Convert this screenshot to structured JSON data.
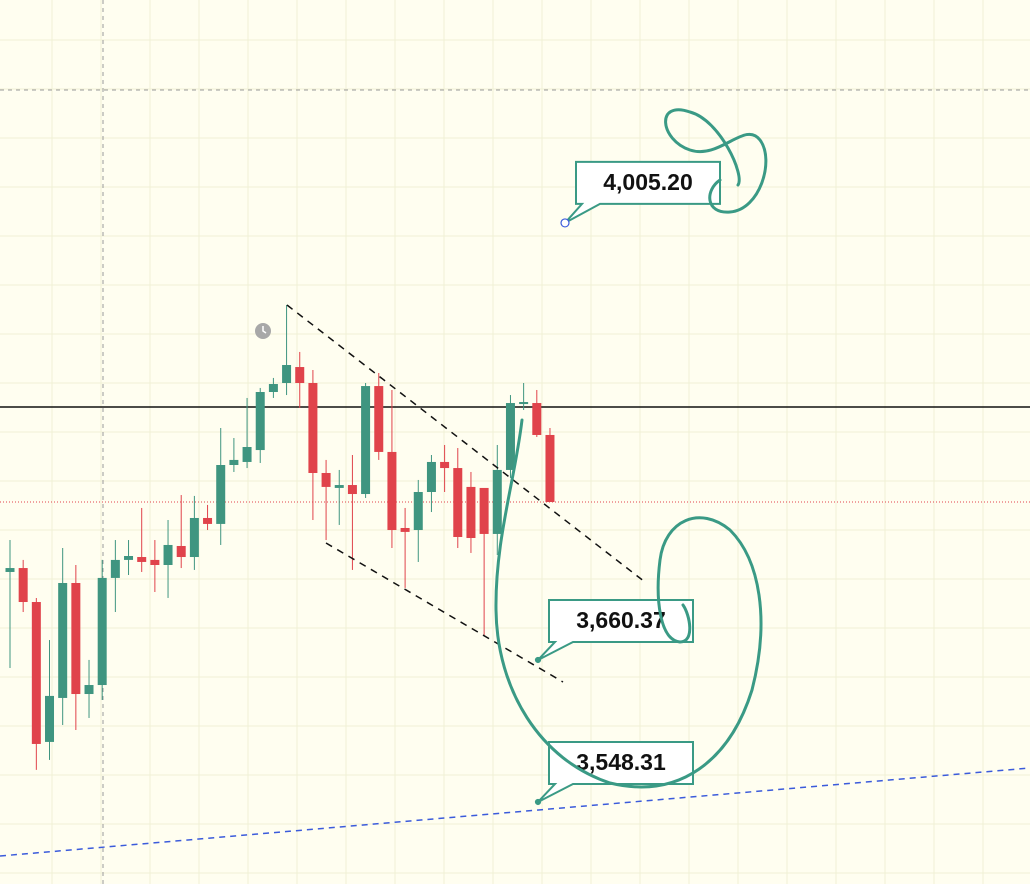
{
  "chart_data": {
    "type": "candlestick",
    "ylim": [
      3483.6,
      4181.1
    ],
    "up_color": "#3f9580",
    "down_color": "#e0434b",
    "open": [
      3729.8,
      3732.9,
      3706.1,
      3595.7,
      3630.4,
      3721.1,
      3633.5,
      3640.6,
      3725.1,
      3739.3,
      3741.6,
      3739.3,
      3735.3,
      3750.3,
      3741.6,
      3772.4,
      3767.7,
      3814.2,
      3816.6,
      3826.0,
      3871.8,
      3878.9,
      3891.5,
      3878.9,
      3807.9,
      3796.1,
      3798.4,
      3791.3,
      3876.5,
      3824.5,
      3764.5,
      3762.9,
      3792.9,
      3816.6,
      3811.8,
      3796.9,
      3796.1,
      3759.8,
      3810.3,
      3862.3,
      3863.1,
      3837.9
    ],
    "high": [
      3755.0,
      3739.3,
      3709.3,
      3676.1,
      3748.7,
      3735.3,
      3660.4,
      3739.3,
      3755.0,
      3755.0,
      3780.3,
      3755.0,
      3770.8,
      3790.5,
      3789.8,
      3782.7,
      3843.4,
      3835.5,
      3867.1,
      3875.0,
      3882.9,
      3940.5,
      3903.4,
      3889.2,
      3818.2,
      3810.3,
      3822.1,
      3878.9,
      3886.8,
      3873.4,
      3780.3,
      3802.4,
      3822.1,
      3830.0,
      3827.6,
      3808.7,
      3796.1,
      3830.0,
      3869.4,
      3878.9,
      3873.4,
      3843.4
    ],
    "low": [
      3654.0,
      3698.2,
      3573.6,
      3581.5,
      3609.1,
      3605.1,
      3614.6,
      3628.8,
      3698.2,
      3727.4,
      3729.8,
      3714.0,
      3709.3,
      3732.9,
      3731.4,
      3762.9,
      3751.1,
      3808.7,
      3811.8,
      3815.8,
      3867.1,
      3869.4,
      3859.2,
      3770.8,
      3755.0,
      3766.9,
      3731.4,
      3788.2,
      3818.2,
      3748.7,
      3717.2,
      3737.7,
      3777.1,
      3792.9,
      3748.7,
      3744.8,
      3680.1,
      3743.2,
      3804.0,
      3857.6,
      3836.3,
      3785.0
    ],
    "close": [
      3732.9,
      3706.1,
      3594.1,
      3632.0,
      3721.1,
      3633.5,
      3640.6,
      3725.1,
      3739.3,
      3742.4,
      3737.7,
      3735.3,
      3751.1,
      3741.6,
      3772.4,
      3767.7,
      3814.2,
      3818.2,
      3828.4,
      3871.8,
      3878.1,
      3893.1,
      3878.9,
      3807.9,
      3796.9,
      3798.4,
      3791.3,
      3876.5,
      3824.5,
      3762.9,
      3761.4,
      3792.9,
      3816.6,
      3811.8,
      3757.4,
      3756.6,
      3759.8,
      3810.3,
      3863.1,
      3863.9,
      3837.9,
      3785.0
    ],
    "levels": [
      {
        "value": 3860.0,
        "color": "#111111"
      },
      {
        "value": 4110.1,
        "color": "#9a9a9a"
      }
    ],
    "price_labels": [
      {
        "value": 4005.2,
        "label": "4,005.20"
      },
      {
        "value": 3660.37,
        "label": "3,660.37"
      },
      {
        "value": 3548.31,
        "label": "3,548.31"
      }
    ]
  }
}
